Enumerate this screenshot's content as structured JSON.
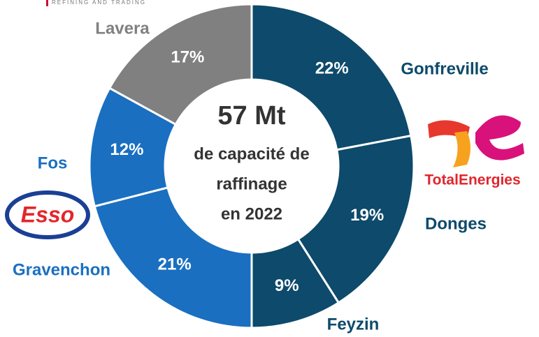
{
  "chart_data": {
    "type": "donut",
    "categories": [
      "Gonfreville",
      "Donges",
      "Feyzin",
      "Gravenchon",
      "Fos",
      "Lavera"
    ],
    "values": [
      22,
      19,
      9,
      21,
      12,
      17
    ],
    "value_labels": [
      "22%",
      "19%",
      "9%",
      "21%",
      "12%",
      "17%"
    ],
    "colors": [
      "#0d4a6b",
      "#0d4a6b",
      "#0d4a6b",
      "#1a6fc0",
      "#1a6fc0",
      "#808080"
    ],
    "center_text": [
      "57 Mt",
      "de capacité de",
      "raffinage",
      "en 2022"
    ],
    "header": "REFINING AND TRADING",
    "logos": [
      "TotalEnergies",
      "Esso"
    ]
  }
}
